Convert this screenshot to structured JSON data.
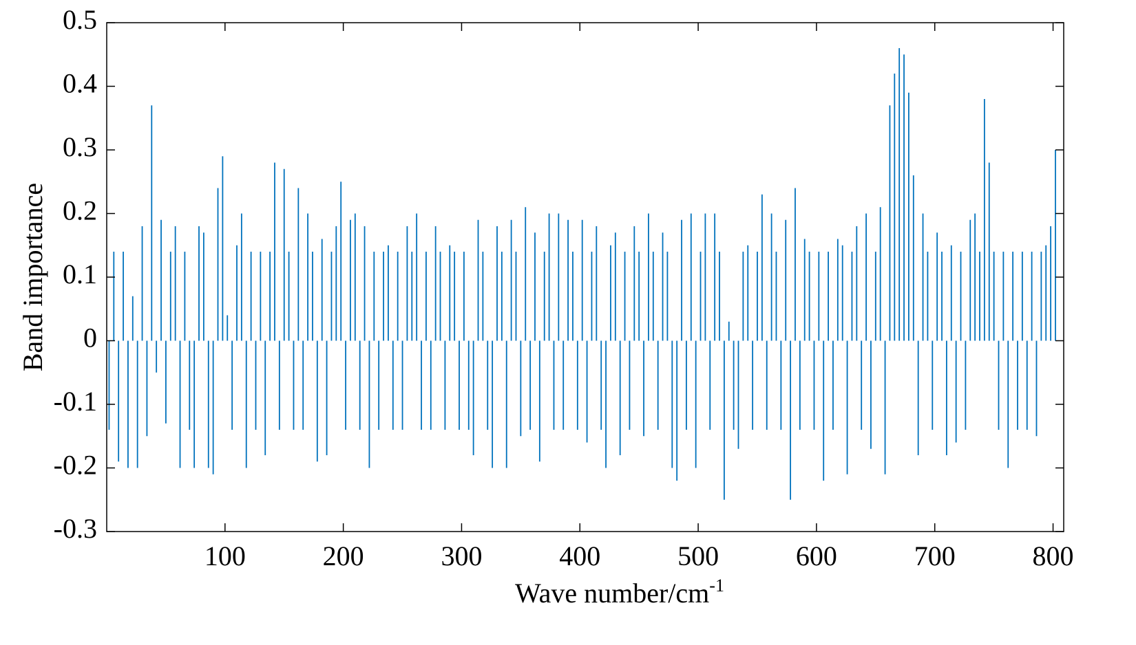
{
  "chart_data": {
    "type": "bar",
    "ylabel": "Band importance",
    "xlabel": {
      "text": "Wave number/cm",
      "sup": "-1"
    },
    "color": "#0072bd",
    "xlim": [
      0,
      809
    ],
    "ylim": [
      -0.3,
      0.5
    ],
    "xticks": [
      100,
      200,
      300,
      400,
      500,
      600,
      700,
      800
    ],
    "yticks": [
      -0.3,
      -0.2,
      -0.1,
      0,
      0.1,
      0.2,
      0.3,
      0.4,
      0.5
    ],
    "x": [
      2,
      6,
      10,
      14,
      18,
      22,
      26,
      30,
      34,
      38,
      42,
      46,
      50,
      54,
      58,
      62,
      66,
      70,
      74,
      78,
      82,
      86,
      90,
      94,
      98,
      102,
      106,
      110,
      114,
      118,
      122,
      126,
      130,
      134,
      138,
      142,
      146,
      150,
      154,
      158,
      162,
      166,
      170,
      174,
      178,
      182,
      186,
      190,
      194,
      198,
      202,
      206,
      210,
      214,
      218,
      222,
      226,
      230,
      234,
      238,
      242,
      246,
      250,
      254,
      258,
      262,
      266,
      270,
      274,
      278,
      282,
      286,
      290,
      294,
      298,
      302,
      306,
      310,
      314,
      318,
      322,
      326,
      330,
      334,
      338,
      342,
      346,
      350,
      354,
      358,
      362,
      366,
      370,
      374,
      378,
      382,
      386,
      390,
      394,
      398,
      402,
      406,
      410,
      414,
      418,
      422,
      426,
      430,
      434,
      438,
      442,
      446,
      450,
      454,
      458,
      462,
      466,
      470,
      474,
      478,
      482,
      486,
      490,
      494,
      498,
      502,
      506,
      510,
      514,
      518,
      522,
      526,
      530,
      534,
      538,
      542,
      546,
      550,
      554,
      558,
      562,
      566,
      570,
      574,
      578,
      582,
      586,
      590,
      594,
      598,
      602,
      606,
      610,
      614,
      618,
      622,
      626,
      630,
      634,
      638,
      642,
      646,
      650,
      654,
      658,
      662,
      666,
      670,
      674,
      678,
      682,
      686,
      690,
      694,
      698,
      702,
      706,
      710,
      714,
      718,
      722,
      726,
      730,
      734,
      738,
      742,
      746,
      750,
      754,
      758,
      762,
      766,
      770,
      774,
      778,
      782,
      786,
      790,
      794,
      798,
      802
    ],
    "values": [
      -0.14,
      0.14,
      -0.19,
      0.14,
      -0.2,
      0.07,
      -0.2,
      0.18,
      -0.15,
      0.37,
      -0.05,
      0.19,
      -0.13,
      0.14,
      0.18,
      -0.2,
      0.14,
      -0.14,
      -0.2,
      0.18,
      0.17,
      -0.2,
      -0.21,
      0.24,
      0.29,
      0.04,
      -0.14,
      0.15,
      0.2,
      -0.2,
      0.14,
      -0.14,
      0.14,
      -0.18,
      0.14,
      0.28,
      -0.14,
      0.27,
      0.14,
      -0.14,
      0.24,
      -0.14,
      0.2,
      0.14,
      -0.19,
      0.16,
      -0.18,
      0.14,
      0.18,
      0.25,
      -0.14,
      0.19,
      0.2,
      -0.14,
      0.18,
      -0.2,
      0.14,
      -0.14,
      0.14,
      0.15,
      -0.14,
      0.14,
      -0.14,
      0.18,
      0.14,
      0.2,
      -0.14,
      0.14,
      -0.14,
      0.18,
      0.14,
      -0.14,
      0.15,
      0.14,
      -0.14,
      0.14,
      -0.14,
      -0.18,
      0.19,
      0.14,
      -0.14,
      -0.2,
      0.18,
      0.14,
      -0.2,
      0.19,
      0.14,
      -0.15,
      0.21,
      -0.14,
      0.17,
      -0.19,
      0.14,
      0.2,
      -0.14,
      0.2,
      -0.14,
      0.19,
      0.14,
      -0.14,
      0.19,
      -0.16,
      0.14,
      0.18,
      -0.14,
      -0.2,
      0.15,
      0.17,
      -0.18,
      0.14,
      -0.14,
      0.18,
      0.14,
      -0.15,
      0.2,
      0.14,
      -0.14,
      0.17,
      0.14,
      -0.2,
      -0.22,
      0.19,
      -0.14,
      0.2,
      -0.2,
      0.14,
      0.2,
      -0.14,
      0.2,
      0.14,
      -0.25,
      0.03,
      -0.14,
      -0.17,
      0.14,
      0.15,
      -0.14,
      0.14,
      0.23,
      -0.14,
      0.2,
      0.14,
      -0.14,
      0.19,
      -0.25,
      0.24,
      -0.14,
      0.16,
      0.14,
      -0.14,
      0.14,
      -0.22,
      0.14,
      -0.14,
      0.16,
      0.15,
      -0.21,
      0.14,
      0.18,
      -0.14,
      0.2,
      -0.17,
      0.14,
      0.21,
      -0.21,
      0.37,
      0.42,
      0.46,
      0.45,
      0.39,
      0.26,
      -0.18,
      0.2,
      0.14,
      -0.14,
      0.17,
      0.14,
      -0.18,
      0.15,
      -0.16,
      0.14,
      -0.14,
      0.19,
      0.2,
      0.14,
      0.38,
      0.28,
      0.14,
      -0.14,
      0.14,
      -0.2,
      0.14,
      -0.14,
      0.14,
      -0.14,
      0.14,
      -0.15,
      0.14,
      0.15,
      0.18,
      0.3
    ]
  }
}
